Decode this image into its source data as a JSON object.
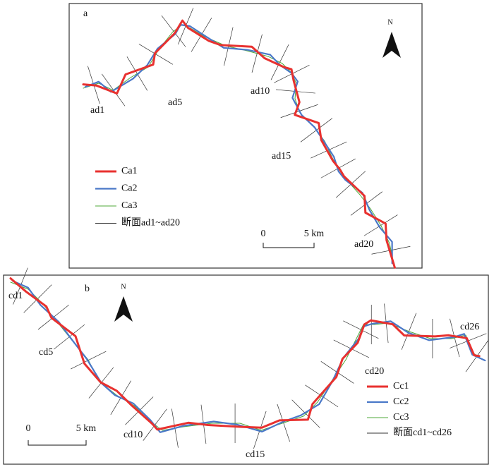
{
  "panels": [
    {
      "label": "a",
      "north": "N",
      "sections": [
        "ad1",
        "ad5",
        "ad10",
        "ad15",
        "ad20"
      ],
      "legend": [
        {
          "name": "Ca1",
          "color": "#e8312f"
        },
        {
          "name": "Ca2",
          "color": "#4a78c8"
        },
        {
          "name": "Ca3",
          "color": "#4fa83a"
        },
        {
          "name": "断面ad1~ad20",
          "color": "#333333"
        }
      ],
      "scale": {
        "start": "0",
        "end": "5 km"
      }
    },
    {
      "label": "b",
      "north": "N",
      "sections": [
        "cd1",
        "cd5",
        "cd10",
        "cd15",
        "cd20",
        "cd26"
      ],
      "legend": [
        {
          "name": "Cc1",
          "color": "#e8312f"
        },
        {
          "name": "Cc2",
          "color": "#4a78c8"
        },
        {
          "name": "Cc3",
          "color": "#4fa83a"
        },
        {
          "name": "断面cd1~cd26",
          "color": "#333333"
        }
      ],
      "scale": {
        "start": "0",
        "end": "5 km"
      }
    }
  ]
}
